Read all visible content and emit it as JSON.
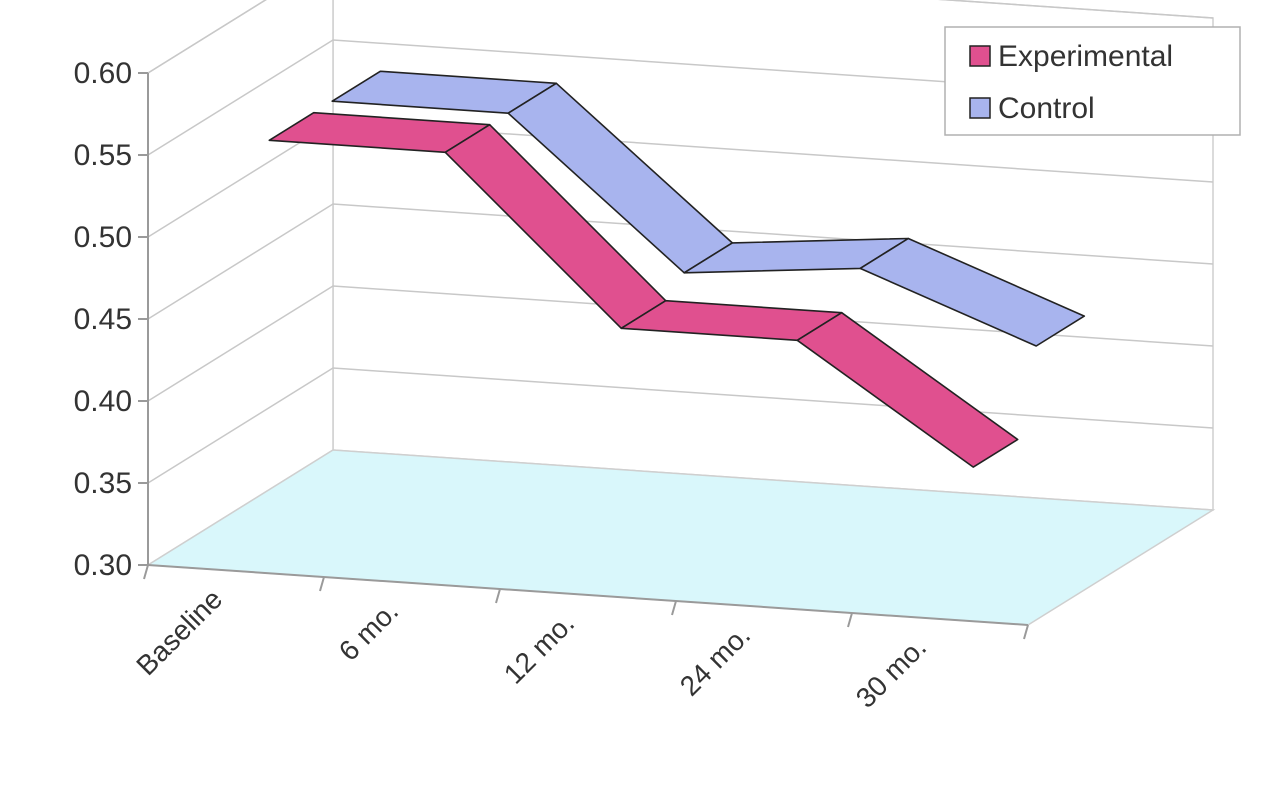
{
  "chart_data": {
    "type": "line",
    "title": "",
    "xlabel": "",
    "ylabel": "",
    "categories": [
      "Baseline",
      "6 mo.",
      "12 mo.",
      "24 mo.",
      "30 mo."
    ],
    "ylim": [
      0.3,
      0.6
    ],
    "yticks": [
      "0.60",
      "0.55",
      "0.50",
      "0.45",
      "0.40",
      "0.35",
      "0.30"
    ],
    "grid": true,
    "legend_position": "top-right",
    "series": [
      {
        "name": "Experimental",
        "color": "#e0508f",
        "values": [
          0.55,
          0.55,
          0.45,
          0.45,
          0.38
        ]
      },
      {
        "name": "Control",
        "color": "#a8b4ee",
        "values": [
          0.55,
          0.55,
          0.46,
          0.47,
          0.43
        ]
      }
    ],
    "floor_color": "#d9f7fb"
  }
}
